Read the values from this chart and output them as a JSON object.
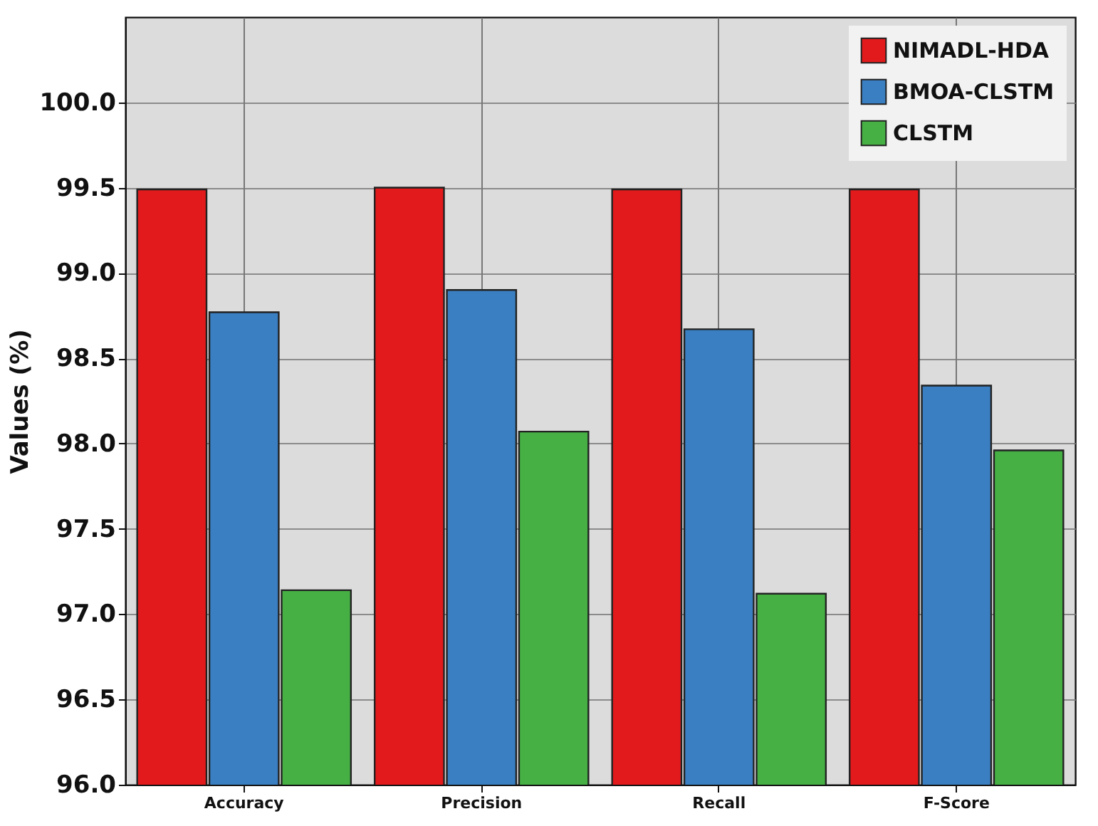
{
  "chart_data": {
    "type": "bar",
    "ylabel": "Values (%)",
    "categories": [
      "Accuracy",
      "Precision",
      "Recall",
      "F-Score"
    ],
    "series": [
      {
        "name": "NIMADL-HDA",
        "color": "#e31a1c",
        "values": [
          99.49,
          99.5,
          99.49,
          99.49
        ]
      },
      {
        "name": "BMOA-CLSTM",
        "color": "#3a7fc1",
        "values": [
          98.77,
          98.9,
          98.67,
          98.34
        ]
      },
      {
        "name": "CLSTM",
        "color": "#46b045",
        "values": [
          97.14,
          98.07,
          97.12,
          97.96
        ]
      }
    ],
    "ylim": [
      96.0,
      100.5
    ],
    "yticks": [
      {
        "value": 96,
        "label": "96.0"
      },
      {
        "value": 96.5,
        "label": "96.5"
      },
      {
        "value": 97,
        "label": "97.0"
      },
      {
        "value": 97.5,
        "label": "97.5"
      },
      {
        "value": 98,
        "label": "98.0"
      },
      {
        "value": 98.5,
        "label": "98.5"
      },
      {
        "value": 99,
        "label": "99.0"
      },
      {
        "value": 99.5,
        "label": "99.5"
      },
      {
        "value": 100,
        "label": "100.0"
      }
    ],
    "grid": true,
    "legend": "top right"
  }
}
